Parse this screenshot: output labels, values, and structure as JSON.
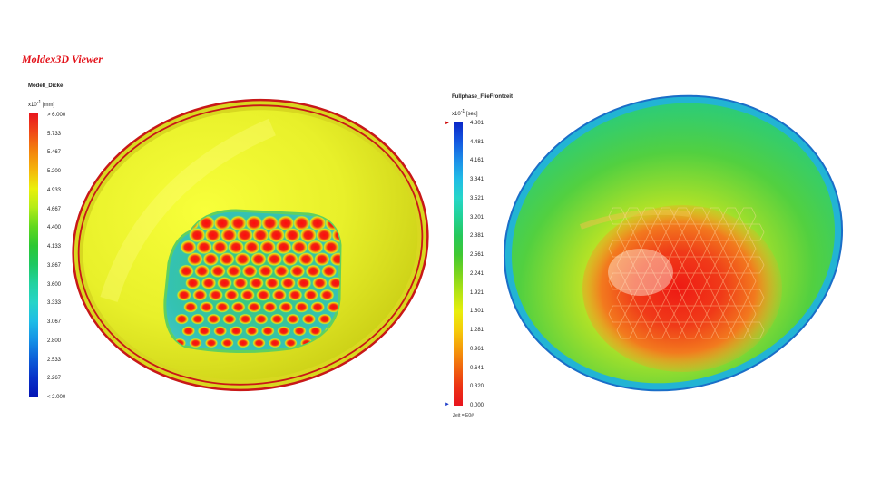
{
  "app": {
    "brand": "Moldex3D Viewer"
  },
  "left_panel": {
    "legend": {
      "title": "Modell_Dicke",
      "unit_prefix": "x10",
      "unit_exp": "-1",
      "unit": "[mm]",
      "ticks": [
        "> 6.000",
        "5.733",
        "5.467",
        "5.200",
        "4.933",
        "4.667",
        "4.400",
        "4.133",
        "3.867",
        "3.600",
        "3.333",
        "3.067",
        "2.800",
        "2.533",
        "2.267",
        "< 2.000"
      ],
      "gradient": [
        "#e8141e",
        "#f04818",
        "#f3820c",
        "#f5b40a",
        "#eaf00a",
        "#b4ec18",
        "#62d81e",
        "#2cc832",
        "#1ec862",
        "#22d2a0",
        "#26d4c8",
        "#1ebce6",
        "#1490e6",
        "#0c5cd8",
        "#0830c8",
        "#0414b4"
      ]
    }
  },
  "right_panel": {
    "legend": {
      "title": "Fullphase_FlieFrontzeit",
      "unit_prefix": "x10",
      "unit_exp": "-1",
      "unit": "[sec]",
      "ticks": [
        "4.801",
        "4.481",
        "4.161",
        "3.841",
        "3.521",
        "3.201",
        "2.881",
        "2.561",
        "2.241",
        "1.921",
        "1.601",
        "1.281",
        "0.961",
        "0.641",
        "0.320",
        "0.000"
      ],
      "gradient": [
        "#0a28c8",
        "#1458e0",
        "#1c8ee8",
        "#20bce6",
        "#26d6c8",
        "#22d296",
        "#26c85a",
        "#40c832",
        "#7ad41e",
        "#b4e414",
        "#e8ee0c",
        "#f5cc0a",
        "#f59a0a",
        "#f0640e",
        "#ec3214",
        "#e8141e"
      ],
      "footer": "Zeit = E0#"
    }
  }
}
